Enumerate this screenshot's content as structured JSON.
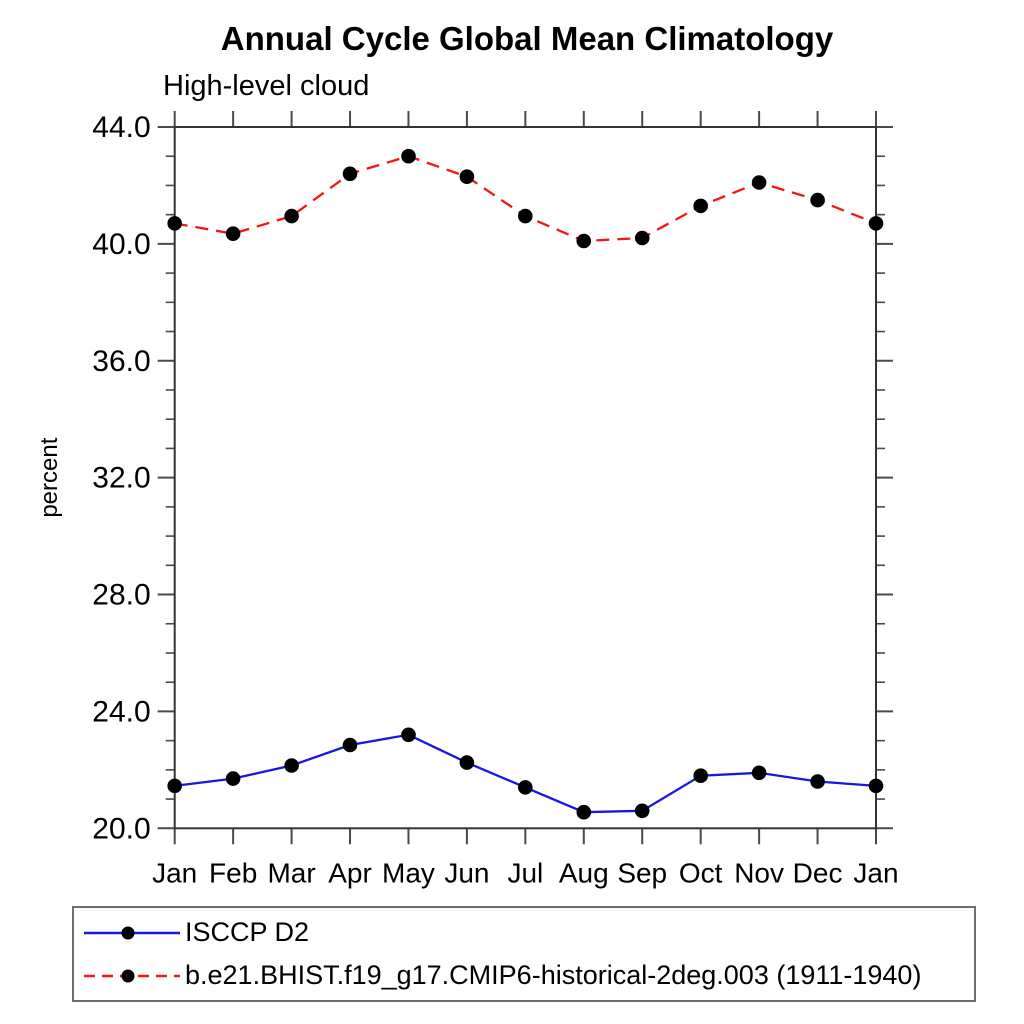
{
  "header": {
    "title": "Annual Cycle Global Mean Climatology",
    "subtitle": "High-level cloud"
  },
  "chart_data": {
    "type": "line",
    "title": "Annual Cycle Global Mean Climatology",
    "subtitle": "High-level cloud",
    "xlabel": "",
    "ylabel": "percent",
    "categories": [
      "Jan",
      "Feb",
      "Mar",
      "Apr",
      "May",
      "Jun",
      "Jul",
      "Aug",
      "Sep",
      "Oct",
      "Nov",
      "Dec",
      "Jan"
    ],
    "series": [
      {
        "name": "ISCCP D2",
        "color": "#1717e0",
        "line_style": "solid",
        "marker": "filled-circle",
        "marker_color": "#000000",
        "values": [
          21.45,
          21.7,
          22.15,
          22.85,
          23.2,
          22.25,
          21.4,
          20.55,
          20.6,
          21.8,
          21.9,
          21.6,
          21.45
        ]
      },
      {
        "name": "b.e21.BHIST.f19_g17.CMIP6-historical-2deg.003 (1911-1940)",
        "color": "#f51515",
        "line_style": "dashed",
        "marker": "filled-circle",
        "marker_color": "#000000",
        "values": [
          40.7,
          40.35,
          40.95,
          42.4,
          43.0,
          42.3,
          40.95,
          40.1,
          40.2,
          41.3,
          42.1,
          41.5,
          40.7
        ]
      }
    ],
    "ylim": [
      20.0,
      44.0
    ],
    "y_ticks": [
      20,
      24,
      28,
      32,
      36,
      40,
      44
    ],
    "y_tick_labels": [
      "20.0",
      "24.0",
      "28.0",
      "32.0",
      "36.0",
      "40.0",
      "44.0"
    ],
    "y_minor_step": 1,
    "grid": false,
    "legend_position": "bottom-left-boxed",
    "axis_color": "#333333",
    "tick_color": "#4a4a4a",
    "text_color": "#000000"
  }
}
